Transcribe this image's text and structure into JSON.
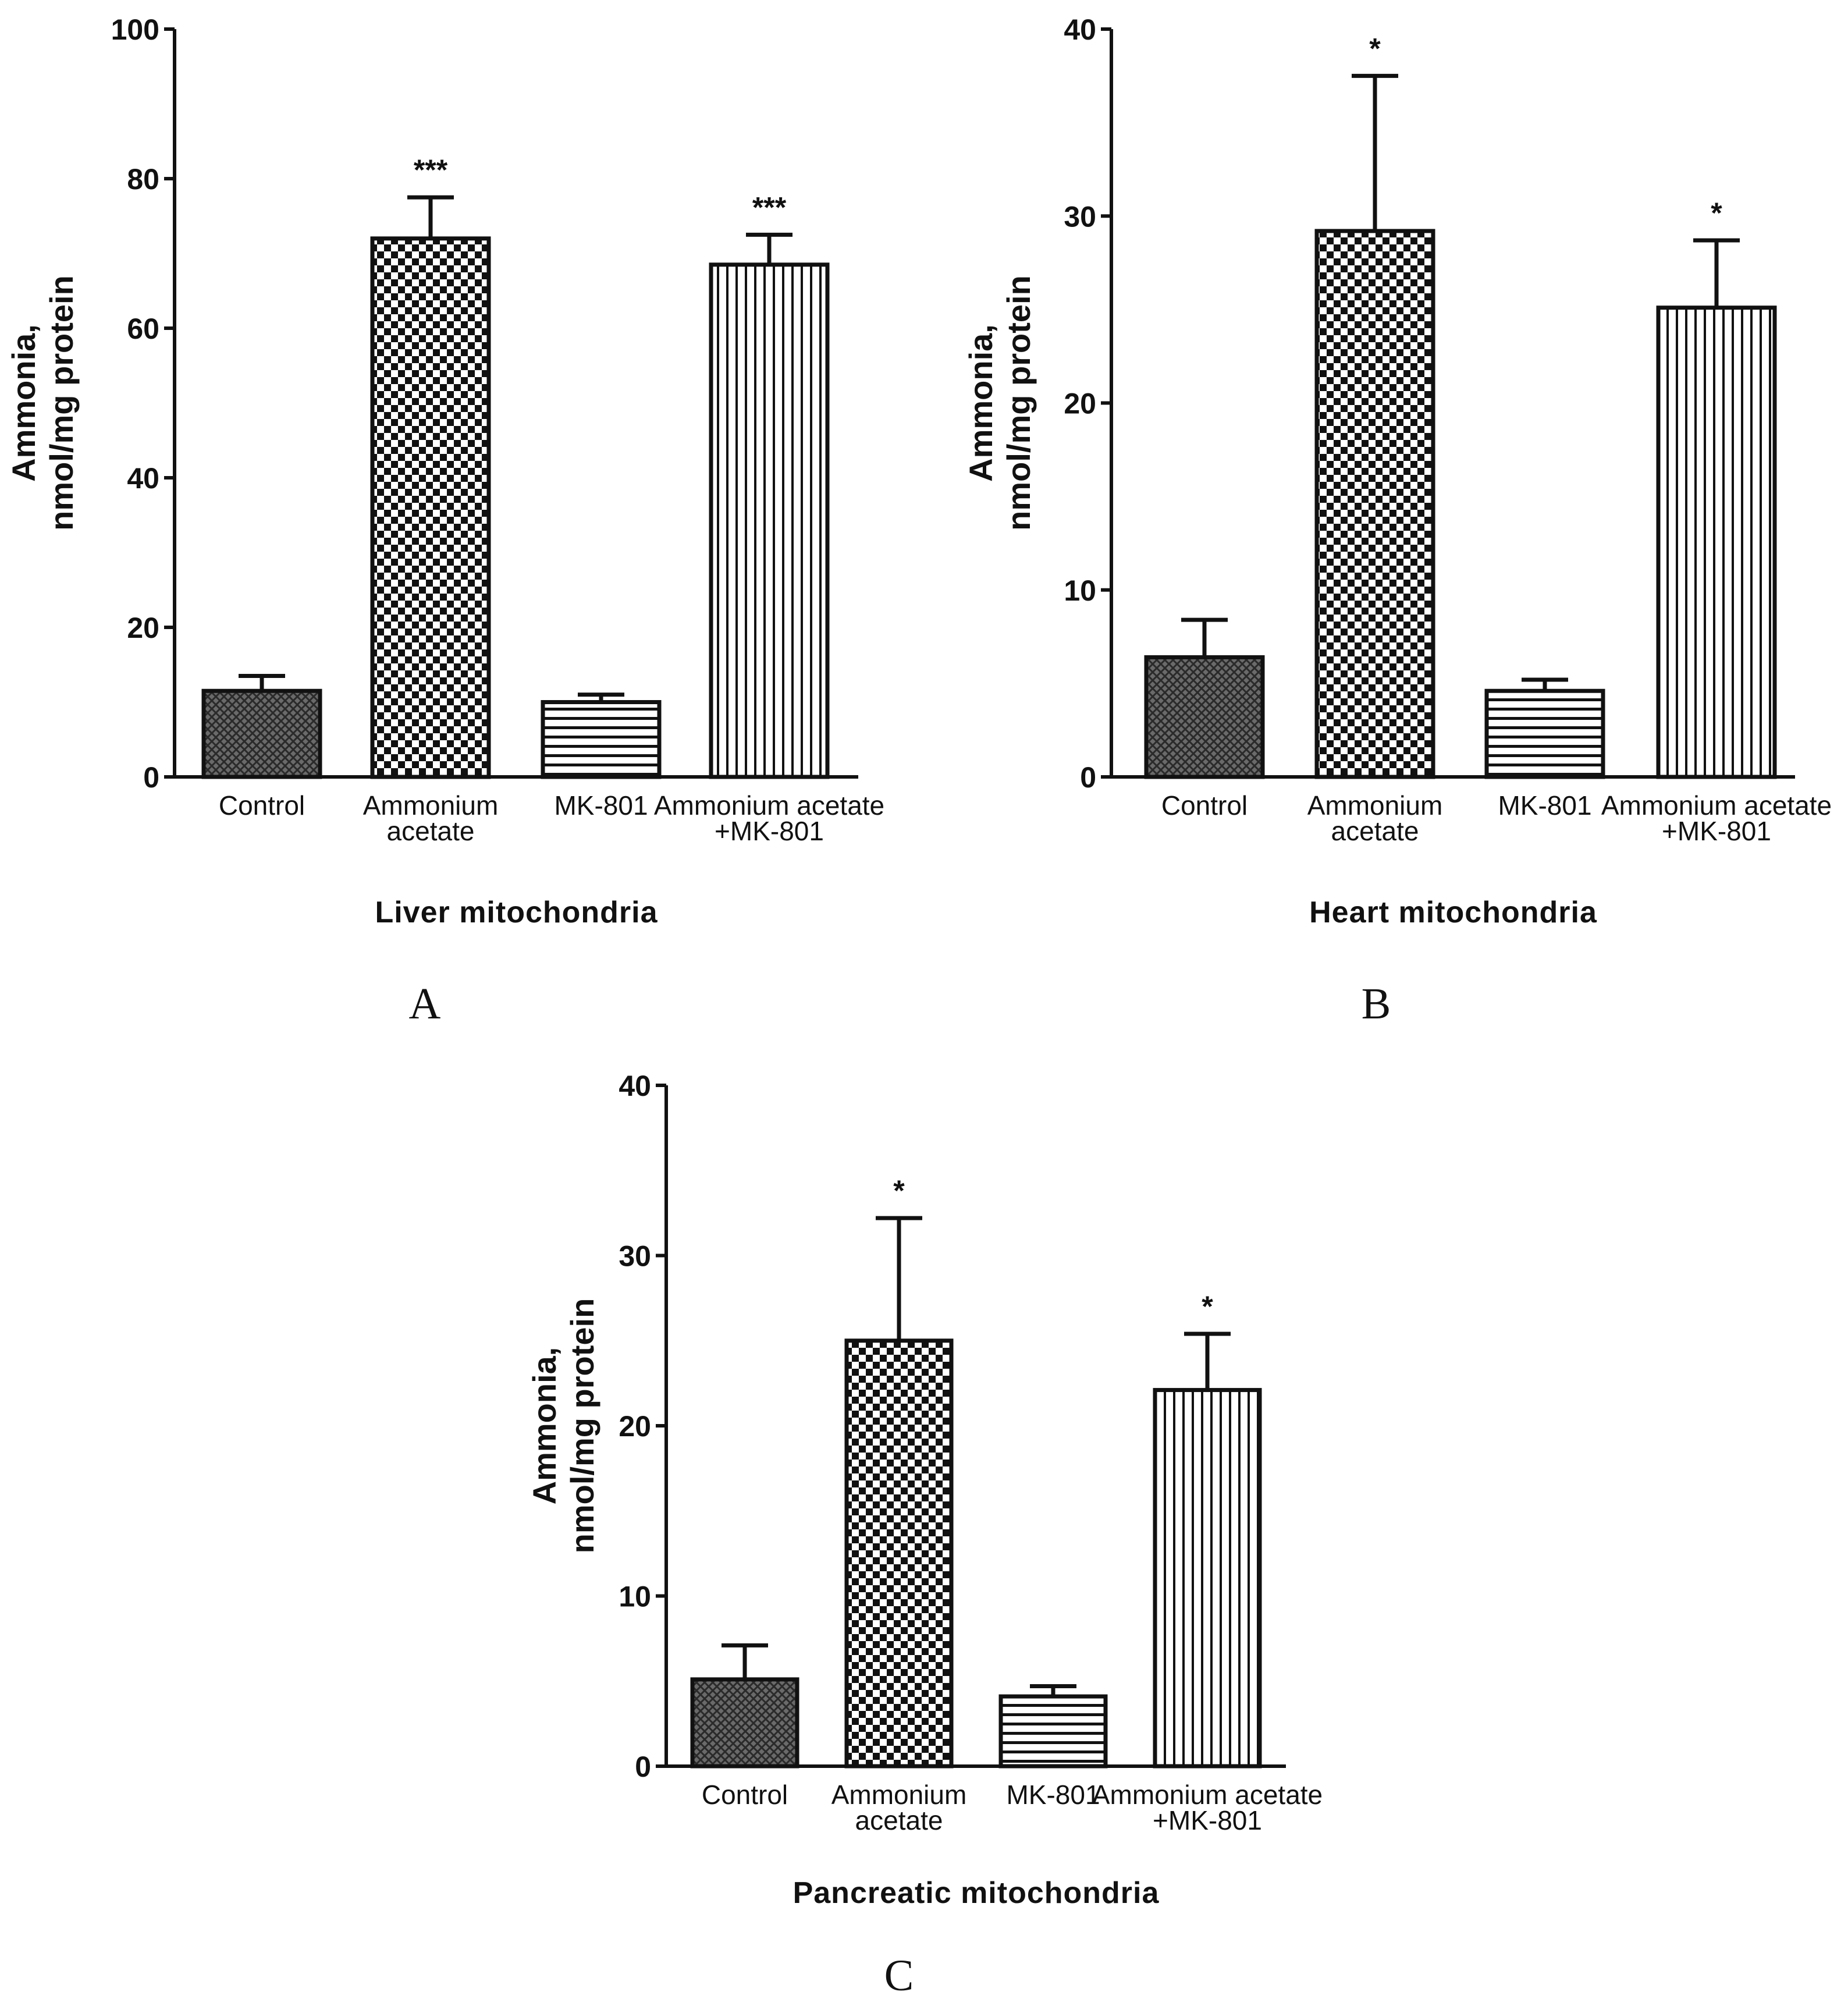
{
  "figure": {
    "panels": [
      "A",
      "B",
      "C"
    ]
  },
  "chart_data": [
    {
      "panel": "A",
      "type": "bar",
      "title": "",
      "xlabel": "Liver mitochondria",
      "ylabel": [
        "Ammonia,",
        "nmol/mg protein"
      ],
      "ylim": [
        0,
        100
      ],
      "yticks": [
        0,
        20,
        40,
        60,
        80,
        100
      ],
      "categories": [
        [
          "Control"
        ],
        [
          "Ammonium",
          "acetate"
        ],
        [
          "MK-801"
        ],
        [
          "Ammonium acetate",
          "+MK-801"
        ]
      ],
      "values": [
        11.5,
        72,
        10,
        68.5
      ],
      "errors": [
        2,
        5.5,
        1,
        4
      ],
      "significance": [
        "",
        "***",
        "",
        "***"
      ],
      "patterns": [
        "crosshatch",
        "checker",
        "hlines",
        "vlines"
      ]
    },
    {
      "panel": "B",
      "type": "bar",
      "title": "",
      "xlabel": "Heart mitochondria",
      "ylabel": [
        "Ammonia,",
        "nmol/mg protein"
      ],
      "ylim": [
        0,
        40
      ],
      "yticks": [
        0,
        10,
        20,
        30,
        40
      ],
      "categories": [
        [
          "Control"
        ],
        [
          "Ammonium",
          "acetate"
        ],
        [
          "MK-801"
        ],
        [
          "Ammonium acetate",
          "+MK-801"
        ]
      ],
      "values": [
        6.4,
        29.2,
        4.6,
        25.1
      ],
      "errors": [
        2,
        8.3,
        0.6,
        3.6
      ],
      "significance": [
        "",
        "*",
        "",
        "*"
      ],
      "patterns": [
        "crosshatch",
        "checker",
        "hlines",
        "vlines"
      ]
    },
    {
      "panel": "C",
      "type": "bar",
      "title": "",
      "xlabel": "Pancreatic mitochondria",
      "ylabel": [
        "Ammonia,",
        "nmol/mg protein"
      ],
      "ylim": [
        0,
        40
      ],
      "yticks": [
        0,
        10,
        20,
        30,
        40
      ],
      "categories": [
        [
          "Control"
        ],
        [
          "Ammonium",
          "acetate"
        ],
        [
          "MK-801"
        ],
        [
          "Ammonium acetate",
          "+MK-801"
        ]
      ],
      "values": [
        5.1,
        25,
        4.1,
        22.1
      ],
      "errors": [
        2,
        7.2,
        0.6,
        3.3
      ],
      "significance": [
        "",
        "*",
        "",
        "*"
      ],
      "patterns": [
        "crosshatch",
        "checker",
        "hlines",
        "vlines"
      ]
    }
  ]
}
